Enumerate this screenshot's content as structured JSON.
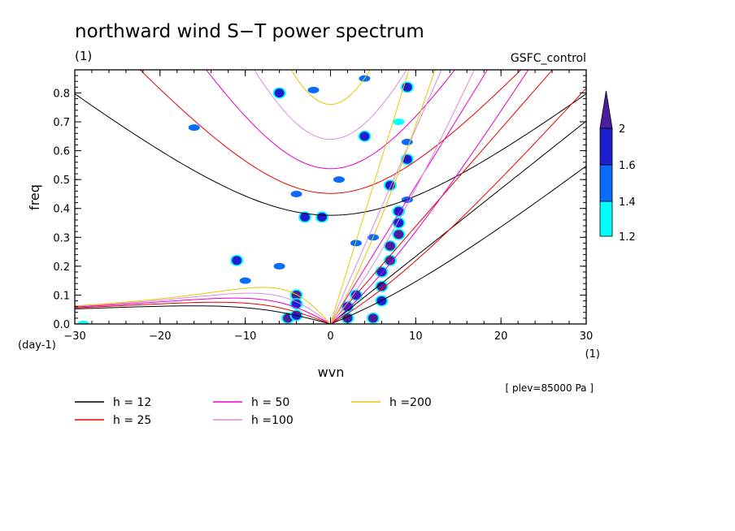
{
  "chart_data": {
    "type": "heatmap",
    "title": "northward wind S−T power spectrum",
    "subtitle_left": "(1)",
    "subtitle_right": "GSFC_control",
    "xlabel": "wvn",
    "ylabel": "freq",
    "x_unit": "(1)",
    "y_unit": "(day-1)",
    "annotation": "[ plev=85000 Pa ]",
    "xlim": [
      -30,
      30
    ],
    "ylim": [
      0,
      0.88
    ],
    "x_ticks": [
      -30,
      -20,
      -10,
      0,
      10,
      20,
      30
    ],
    "x_tick_labels": [
      "−30",
      "−20",
      "−10",
      "0",
      "10",
      "20",
      "30"
    ],
    "y_ticks": [
      0,
      0.1,
      0.2,
      0.3,
      0.4,
      0.5,
      0.6,
      0.7,
      0.8
    ],
    "y_tick_labels": [
      "0.0",
      "0.1",
      "0.2",
      "0.3",
      "0.4",
      "0.5",
      "0.6",
      "0.7",
      "0.8"
    ],
    "colorbar": {
      "levels": [
        1.2,
        1.4,
        1.6,
        2
      ],
      "labels": [
        "1.2",
        "1.4",
        "1.6",
        "2"
      ],
      "colors": [
        "#00ffff",
        "#0a6cff",
        "#1e1ecf",
        "#4b1e9e"
      ]
    },
    "dispersion_curves": [
      {
        "label": "h = 12",
        "h": 12,
        "color": "#000000"
      },
      {
        "label": "h = 25",
        "h": 25,
        "color": "#e60000"
      },
      {
        "label": "h = 50",
        "h": 50,
        "color": "#e600c8"
      },
      {
        "label": "h =100",
        "h": 100,
        "color": "#dc8cdc"
      },
      {
        "label": "h =200",
        "h": 200,
        "color": "#e6c800"
      }
    ],
    "contour_cells": [
      {
        "x": -29,
        "y": 0.0,
        "level": 1.2
      },
      {
        "x": -5,
        "y": 0.02,
        "level": 2
      },
      {
        "x": -4,
        "y": 0.1,
        "level": 2
      },
      {
        "x": -4,
        "y": 0.03,
        "level": 1.6
      },
      {
        "x": -4,
        "y": 0.07,
        "level": 1.6
      },
      {
        "x": 2,
        "y": 0.02,
        "level": 2
      },
      {
        "x": 2,
        "y": 0.06,
        "level": 1.6
      },
      {
        "x": 3,
        "y": 0.1,
        "level": 1.6
      },
      {
        "x": 5,
        "y": 0.02,
        "level": 2
      },
      {
        "x": 6,
        "y": 0.13,
        "level": 2
      },
      {
        "x": 6,
        "y": 0.08,
        "level": 1.6
      },
      {
        "x": 6,
        "y": 0.18,
        "level": 1.6
      },
      {
        "x": 7,
        "y": 0.22,
        "level": 2
      },
      {
        "x": 7,
        "y": 0.27,
        "level": 2
      },
      {
        "x": 8,
        "y": 0.31,
        "level": 2
      },
      {
        "x": 8,
        "y": 0.35,
        "level": 1.6
      },
      {
        "x": 8,
        "y": 0.39,
        "level": 1.6
      },
      {
        "x": 9,
        "y": 0.43,
        "level": 1.4
      },
      {
        "x": 7,
        "y": 0.48,
        "level": 1.6
      },
      {
        "x": 9,
        "y": 0.57,
        "level": 1.6
      },
      {
        "x": 9,
        "y": 0.63,
        "level": 1.4
      },
      {
        "x": 8,
        "y": 0.7,
        "level": 1.2
      },
      {
        "x": 9,
        "y": 0.82,
        "level": 1.6
      },
      {
        "x": -1,
        "y": 0.37,
        "level": 1.6
      },
      {
        "x": -3,
        "y": 0.37,
        "level": 1.6
      },
      {
        "x": -11,
        "y": 0.22,
        "level": 1.6
      },
      {
        "x": -10,
        "y": 0.15,
        "level": 1.4
      },
      {
        "x": -6,
        "y": 0.2,
        "level": 1.4
      },
      {
        "x": -6,
        "y": 0.8,
        "level": 1.6
      },
      {
        "x": -2,
        "y": 0.81,
        "level": 1.4
      },
      {
        "x": 4,
        "y": 0.85,
        "level": 1.4
      },
      {
        "x": 1,
        "y": 0.5,
        "level": 1.4
      },
      {
        "x": -4,
        "y": 0.45,
        "level": 1.4
      },
      {
        "x": 4,
        "y": 0.65,
        "level": 1.6
      },
      {
        "x": 5,
        "y": 0.3,
        "level": 1.4
      },
      {
        "x": 3,
        "y": 0.28,
        "level": 1.4
      },
      {
        "x": -16,
        "y": 0.68,
        "level": 1.4
      }
    ]
  }
}
